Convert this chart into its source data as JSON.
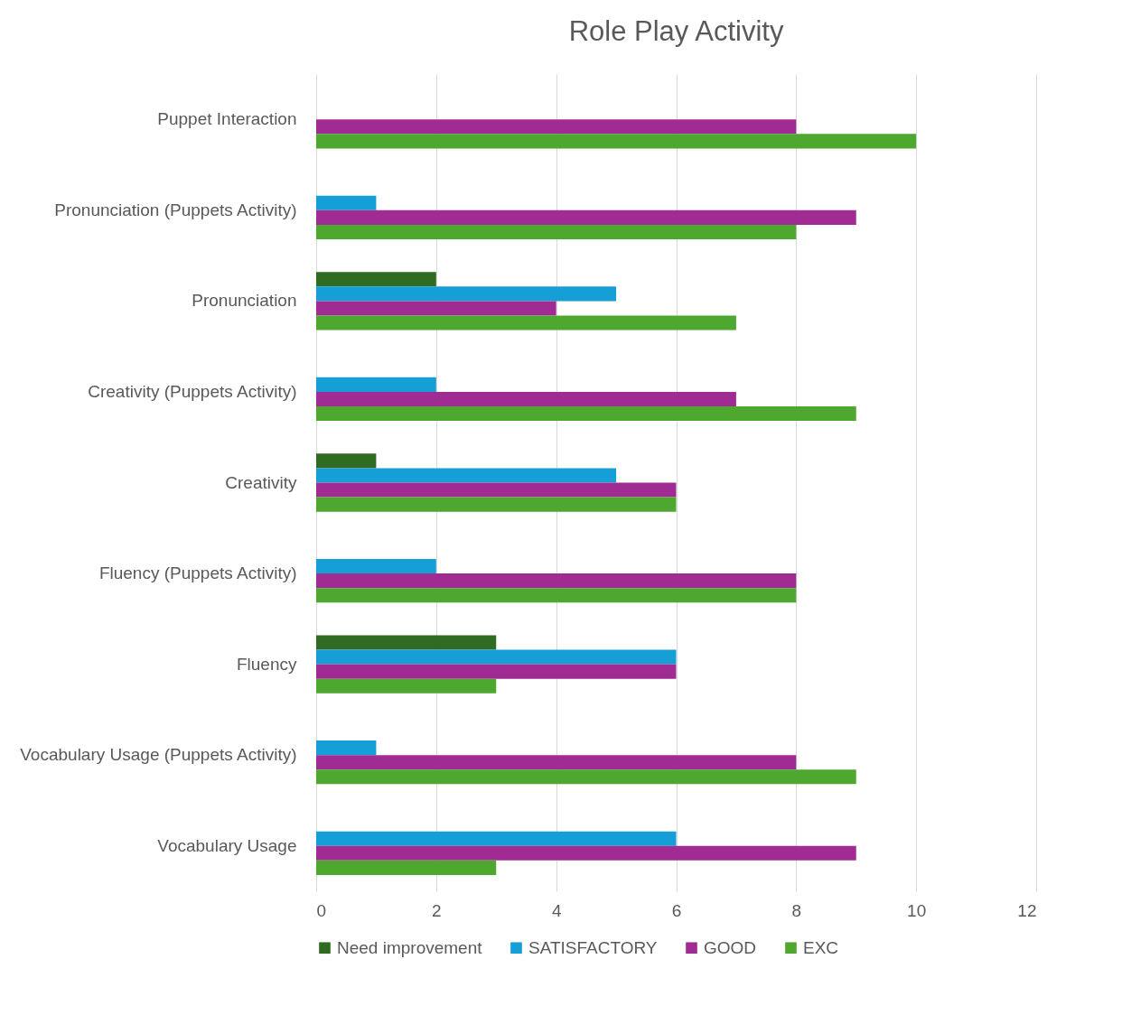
{
  "chart_data": {
    "type": "bar",
    "orientation": "horizontal",
    "title": "Role Play Activity",
    "categories": [
      "Puppet Interaction",
      "Pronunciation (Puppets Activity)",
      "Pronunciation",
      "Creativity (Puppets Activity)",
      "Creativity",
      "Fluency (Puppets Activity)",
      "Fluency",
      "Vocabulary Usage (Puppets Activity)",
      "Vocabulary Usage"
    ],
    "series": [
      {
        "name": "Need improvement",
        "color": "#2f6b20",
        "values": [
          null,
          null,
          2,
          null,
          1,
          null,
          3,
          null,
          null
        ]
      },
      {
        "name": "SATISFACTORY",
        "color": "#169fd6",
        "values": [
          null,
          1,
          5,
          2,
          5,
          2,
          6,
          1,
          6
        ]
      },
      {
        "name": "GOOD",
        "color": "#a02b93",
        "values": [
          8,
          9,
          4,
          7,
          6,
          8,
          6,
          8,
          9
        ]
      },
      {
        "name": "EXC",
        "color": "#4ea72e",
        "values": [
          10,
          8,
          7,
          9,
          6,
          8,
          3,
          9,
          3
        ]
      }
    ],
    "xlim": [
      0,
      12
    ],
    "xticks": [
      0,
      2,
      4,
      6,
      8,
      10,
      12
    ],
    "grid": "x",
    "legend": "bottom"
  }
}
